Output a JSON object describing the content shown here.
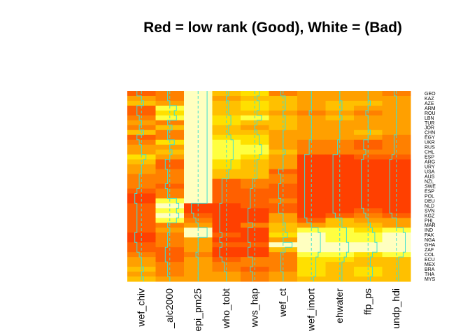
{
  "title": "Red = low rank (Good), White = (Bad)",
  "chart_data": {
    "type": "heatmap",
    "title": "Red = low rank (Good), White = (Bad)",
    "columns": [
      "wef_chiv",
      "_alc2000",
      "epi_pm25",
      "who_tobt",
      "wvs_hap",
      "wef_ct",
      "wef_imort",
      "ehwater",
      "ffp_ps",
      "undp_hdi"
    ],
    "rows": [
      "GEO",
      "KAZ",
      "AZE",
      "ARM",
      "ROU",
      "LBN",
      "TUR",
      "JOR",
      "CHN",
      "EGY",
      "UKR",
      "RUS",
      "CHL",
      "ESP",
      "ARG",
      "URY",
      "USA",
      "AUS",
      "NZL",
      "SWE",
      "ESP",
      "POL",
      "DEU",
      "NLD",
      "SVN",
      "KGZ",
      "PHL",
      "MAR",
      "IND",
      "PAK",
      "NGA",
      "GHA",
      "ZAF",
      "COL",
      "ECU",
      "MEX",
      "BRA",
      "THA",
      "MYS"
    ],
    "colors": {
      "low": "#ff0000",
      "mid": "#ff8c00",
      "high": "#ffff00",
      "max": "#ffffe0",
      "trace": "#40e0d0"
    },
    "values": [
      [
        3,
        4,
        9,
        6,
        7,
        4,
        5,
        5,
        5,
        4
      ],
      [
        5,
        4,
        9,
        5,
        6,
        6,
        5,
        5,
        5,
        5
      ],
      [
        6,
        5,
        9,
        6,
        7,
        6,
        5,
        6,
        6,
        5
      ],
      [
        3,
        8,
        9,
        6,
        7,
        6,
        5,
        6,
        5,
        5
      ],
      [
        3,
        7,
        9,
        6,
        6,
        5,
        4,
        5,
        4,
        5
      ],
      [
        4,
        8,
        9,
        7,
        8,
        6,
        5,
        6,
        5,
        5
      ],
      [
        5,
        4,
        9,
        7,
        6,
        6,
        5,
        5,
        5,
        5
      ],
      [
        4,
        6,
        9,
        6,
        5,
        6,
        5,
        5,
        5,
        5
      ],
      [
        6,
        4,
        9,
        6,
        6,
        5,
        5,
        5,
        6,
        5
      ],
      [
        3,
        4,
        9,
        7,
        7,
        5,
        5,
        5,
        5,
        4
      ],
      [
        4,
        7,
        9,
        8,
        7,
        5,
        4,
        4,
        3,
        4
      ],
      [
        5,
        5,
        9,
        8,
        8,
        5,
        4,
        4,
        3,
        4
      ],
      [
        5,
        6,
        9,
        8,
        8,
        6,
        4,
        4,
        4,
        4
      ],
      [
        7,
        5,
        9,
        8,
        7,
        5,
        2,
        2,
        3,
        3
      ],
      [
        6,
        3,
        9,
        7,
        6,
        5,
        2,
        2,
        2,
        2
      ],
      [
        5,
        3,
        9,
        7,
        6,
        5,
        2,
        2,
        2,
        2
      ],
      [
        5,
        4,
        9,
        6,
        6,
        3,
        2,
        2,
        2,
        2
      ],
      [
        4,
        4,
        9,
        6,
        6,
        4,
        2,
        2,
        2,
        2
      ],
      [
        4,
        4,
        9,
        3,
        4,
        4,
        2,
        2,
        2,
        2
      ],
      [
        4,
        3,
        9,
        3,
        4,
        3,
        2,
        2,
        2,
        2
      ],
      [
        3,
        4,
        9,
        3,
        3,
        3,
        2,
        2,
        2,
        2
      ],
      [
        2,
        4,
        9,
        3,
        3,
        3,
        2,
        2,
        2,
        2
      ],
      [
        2,
        8,
        9,
        3,
        3,
        4,
        2,
        2,
        2,
        2
      ],
      [
        3,
        9,
        2,
        2,
        3,
        3,
        2,
        2,
        2,
        2
      ],
      [
        3,
        8,
        2,
        2,
        2,
        3,
        2,
        2,
        3,
        2
      ],
      [
        3,
        9,
        3,
        2,
        2,
        5,
        2,
        3,
        4,
        3
      ],
      [
        3,
        8,
        4,
        2,
        2,
        5,
        3,
        6,
        5,
        5
      ],
      [
        3,
        4,
        5,
        2,
        4,
        6,
        5,
        6,
        6,
        5
      ],
      [
        3,
        5,
        9,
        2,
        2,
        6,
        8,
        8,
        7,
        8
      ],
      [
        2,
        4,
        9,
        3,
        2,
        7,
        9,
        8,
        8,
        9
      ],
      [
        2,
        4,
        5,
        2,
        2,
        5,
        9,
        8,
        8,
        9
      ],
      [
        3,
        4,
        5,
        3,
        3,
        9,
        9,
        9,
        9,
        9
      ],
      [
        3,
        3,
        5,
        2,
        2,
        6,
        9,
        9,
        9,
        9
      ],
      [
        4,
        3,
        4,
        2,
        2,
        4,
        8,
        8,
        7,
        8
      ],
      [
        5,
        3,
        5,
        3,
        4,
        4,
        7,
        7,
        6,
        6
      ],
      [
        5,
        4,
        5,
        4,
        4,
        4,
        7,
        6,
        6,
        6
      ],
      [
        6,
        4,
        5,
        4,
        3,
        4,
        7,
        6,
        7,
        6
      ],
      [
        5,
        4,
        5,
        5,
        4,
        5,
        7,
        6,
        7,
        6
      ],
      [
        6,
        5,
        5,
        5,
        4,
        5,
        6,
        6,
        6,
        6
      ]
    ]
  }
}
